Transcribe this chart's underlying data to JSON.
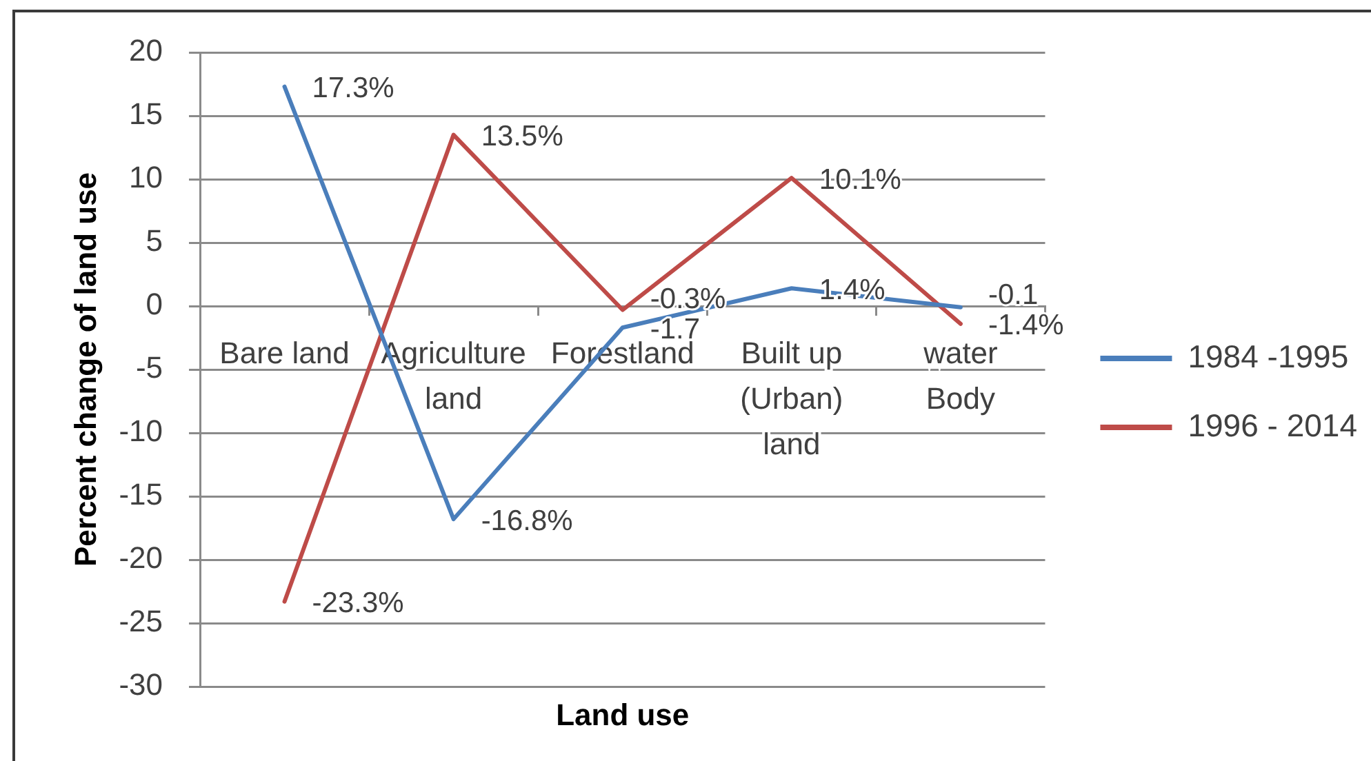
{
  "chart_data": {
    "type": "line",
    "xlabel": "Land use",
    "ylabel": "Percent change of land use",
    "categories": [
      "Bare land",
      "Agriculture land",
      "Forestland",
      "Built up (Urban) land",
      "water Body"
    ],
    "series": [
      {
        "name": "1984 -1995",
        "color": "#4a7ebb",
        "values": [
          17.3,
          -16.8,
          -1.7,
          1.4,
          -0.1
        ],
        "value_labels": [
          "17.3%",
          "-16.8%",
          "-1.7",
          "1.4%",
          "-0.1"
        ]
      },
      {
        "name": "1996 - 2014",
        "color": "#be4b48",
        "values": [
          -23.3,
          13.5,
          -0.3,
          10.1,
          -1.4
        ],
        "value_labels": [
          "-23.3%",
          "13.5%",
          "-0.3%",
          "10.1%",
          "-1.4%"
        ]
      }
    ],
    "ylim": [
      -30,
      20
    ],
    "yticks": [
      -30,
      -25,
      -20,
      -15,
      -10,
      -5,
      0,
      5,
      10,
      15,
      20
    ],
    "grid": "y",
    "legend": "right"
  }
}
